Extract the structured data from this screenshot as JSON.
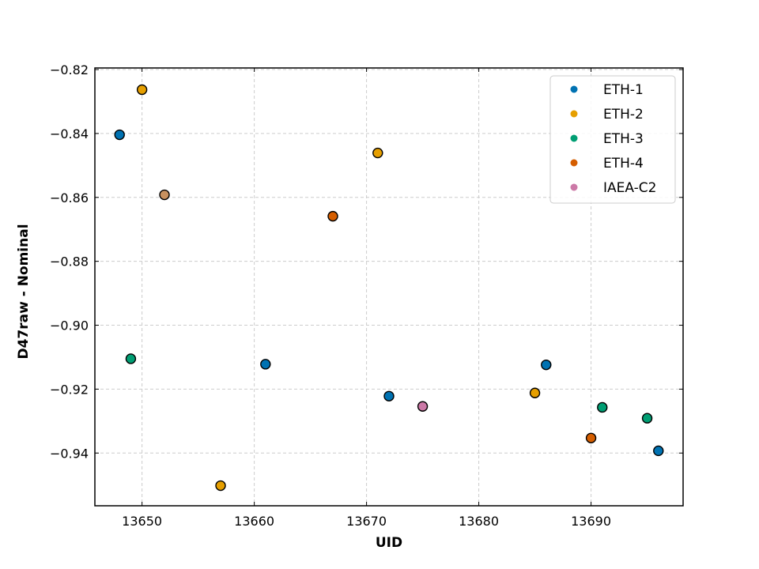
{
  "chart_data": {
    "type": "scatter",
    "xlabel": "UID",
    "ylabel": "D47raw - Nominal",
    "xlim": [
      13645.8,
      13698.2
    ],
    "ylim": [
      -0.9565,
      -0.8195
    ],
    "x_ticks": [
      13650,
      13660,
      13670,
      13680,
      13690
    ],
    "x_tick_labels": [
      "13650",
      "13660",
      "13670",
      "13680",
      "13690"
    ],
    "y_ticks": [
      -0.82,
      -0.84,
      -0.86,
      -0.88,
      -0.9,
      -0.92,
      -0.94
    ],
    "y_tick_labels": [
      "−0.82",
      "−0.84",
      "−0.86",
      "−0.88",
      "−0.90",
      "−0.92",
      "−0.94"
    ],
    "grid": true,
    "legend_position": "top-right",
    "series": [
      {
        "name": "ETH-1",
        "color": "#0072b2",
        "points": [
          {
            "x": 13648,
            "y": -0.8404
          },
          {
            "x": 13661,
            "y": -0.9122
          },
          {
            "x": 13672,
            "y": -0.9222
          },
          {
            "x": 13686,
            "y": -0.9124
          },
          {
            "x": 13696,
            "y": -0.9393
          }
        ]
      },
      {
        "name": "ETH-2",
        "color": "#e69f00",
        "points": [
          {
            "x": 13650,
            "y": -0.8263
          },
          {
            "x": 13657,
            "y": -0.9502
          },
          {
            "x": 13671,
            "y": -0.8461
          },
          {
            "x": 13685,
            "y": -0.9212
          }
        ]
      },
      {
        "name": "ETH-3",
        "color": "#009e73",
        "points": [
          {
            "x": 13649,
            "y": -0.9105
          },
          {
            "x": 13691,
            "y": -0.9257
          },
          {
            "x": 13695,
            "y": -0.9291
          }
        ]
      },
      {
        "name": "ETH-4",
        "color": "#d55e00",
        "points": [
          {
            "x": 13667,
            "y": -0.8659
          },
          {
            "x": 13690,
            "y": -0.9353
          }
        ]
      },
      {
        "name": "IAEA-C2",
        "color": "#cc79a7",
        "points": [
          {
            "x": 13675,
            "y": -0.9254
          }
        ]
      }
    ],
    "extra_points": [
      {
        "x": 13652,
        "y": -0.8592,
        "color": "#c8915f"
      }
    ]
  }
}
